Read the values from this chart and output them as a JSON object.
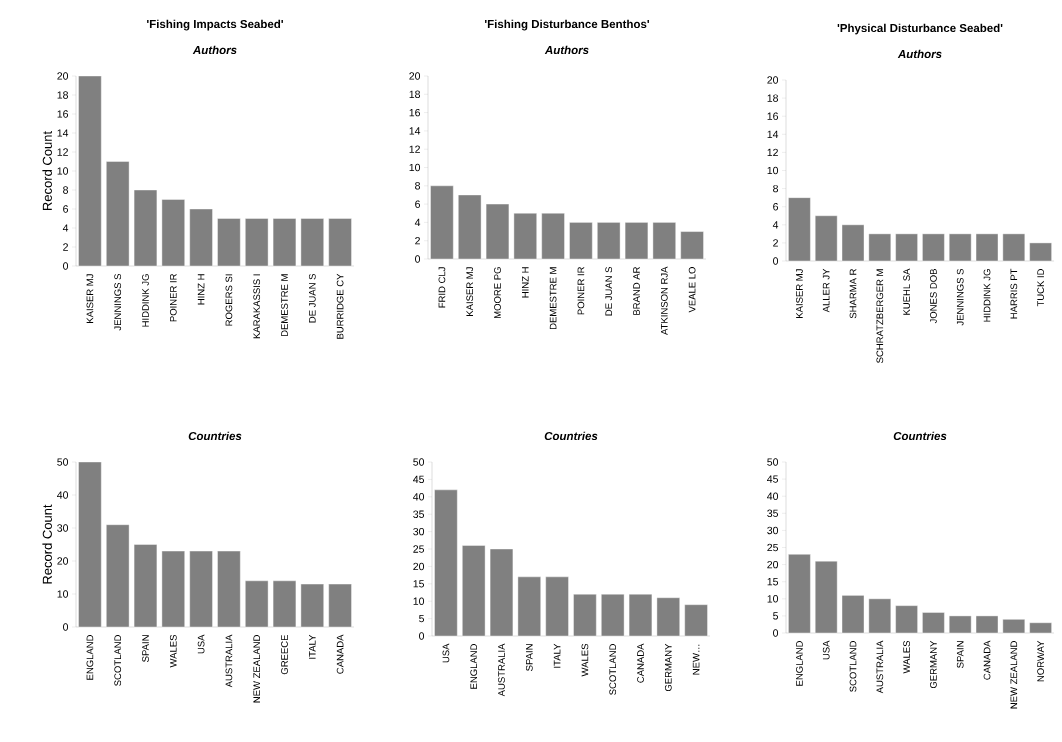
{
  "chart_data": [
    {
      "type": "bar",
      "title": "'Fishing Impacts Seabed'",
      "subtitle": "Authors",
      "ylabel": "Record Count",
      "categories": [
        "KAISER MJ",
        "JENNINGS S",
        "HIDDINK JG",
        "POINER IR",
        "HINZ H",
        "ROGERS SI",
        "KARAKASSIS I",
        "DEMESTRE M",
        "DE JUAN S",
        "BURRIDGE CY"
      ],
      "values": [
        20,
        11,
        8,
        7,
        6,
        5,
        5,
        5,
        5,
        5
      ],
      "color": "#808080",
      "ylim": [
        0,
        20
      ],
      "yticks": [
        0,
        2,
        4,
        6,
        8,
        10,
        12,
        14,
        16,
        18,
        20
      ]
    },
    {
      "type": "bar",
      "title": "'Fishing Disturbance Benthos'",
      "subtitle": "Authors",
      "categories": [
        "FRID CLJ",
        "KAISER MJ",
        "MOORE PG",
        "HINZ H",
        "DEMESTRE M",
        "POINER IR",
        "DE JUAN S",
        "BRAND AR",
        "ATKINSON RJA",
        "VEALE LO"
      ],
      "values": [
        8,
        7,
        6,
        5,
        5,
        4,
        4,
        4,
        4,
        3
      ],
      "color": "#808080",
      "ylim": [
        0,
        20
      ],
      "yticks": [
        0,
        2,
        4,
        6,
        8,
        10,
        12,
        14,
        16,
        18,
        20
      ]
    },
    {
      "type": "bar",
      "title": "'Physical Disturbance Seabed'",
      "subtitle": "Authors",
      "categories": [
        "KAISER MJ",
        "ALLER JY",
        "SHARMA R",
        "SCHRATZBERGER M",
        "KUEHL SA",
        "JONES DOB",
        "JENNINGS S",
        "HIDDINK JG",
        "HARRIS PT",
        "TUCK ID"
      ],
      "values": [
        7,
        5,
        4,
        3,
        3,
        3,
        3,
        3,
        3,
        2
      ],
      "color": "#808080",
      "ylim": [
        0,
        20
      ],
      "yticks": [
        0,
        2,
        4,
        6,
        8,
        10,
        12,
        14,
        16,
        18,
        20
      ]
    },
    {
      "type": "bar",
      "subtitle": "Countries",
      "ylabel": "Record Count",
      "categories": [
        "ENGLAND",
        "SCOTLAND",
        "SPAIN",
        "WALES",
        "USA",
        "AUSTRALIA",
        "NEW ZEALAND",
        "GREECE",
        "ITALY",
        "CANADA"
      ],
      "values": [
        50,
        31,
        25,
        23,
        23,
        23,
        14,
        14,
        13,
        13
      ],
      "color": "#808080",
      "ylim": [
        0,
        50
      ],
      "yticks": [
        0,
        10,
        20,
        30,
        40,
        50
      ]
    },
    {
      "type": "bar",
      "subtitle": "Countries",
      "categories": [
        "USA",
        "ENGLAND",
        "AUSTRALIA",
        "SPAIN",
        "ITALY",
        "WALES",
        "SCOTLAND",
        "CANADA",
        "GERMANY",
        "NEW…"
      ],
      "values": [
        42,
        26,
        25,
        17,
        17,
        12,
        12,
        12,
        11,
        9
      ],
      "color": "#808080",
      "ylim": [
        0,
        50
      ],
      "yticks": [
        0,
        5,
        10,
        15,
        20,
        25,
        30,
        35,
        40,
        45,
        50
      ]
    },
    {
      "type": "bar",
      "subtitle": "Countries",
      "categories": [
        "ENGLAND",
        "USA",
        "SCOTLAND",
        "AUSTRALIA",
        "WALES",
        "GERMANY",
        "SPAIN",
        "CANADA",
        "NEW ZEALAND",
        "NORWAY"
      ],
      "values": [
        23,
        21,
        11,
        10,
        8,
        6,
        5,
        5,
        4,
        3
      ],
      "color": "#808080",
      "ylim": [
        0,
        50
      ],
      "yticks": [
        0,
        5,
        10,
        15,
        20,
        25,
        30,
        35,
        40,
        45,
        50
      ]
    }
  ]
}
